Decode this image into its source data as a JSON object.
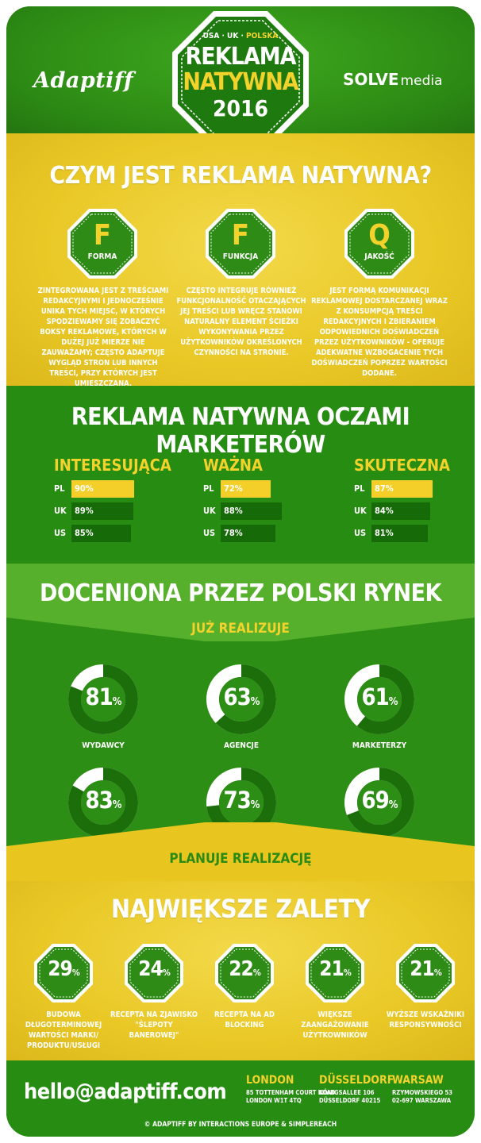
{
  "header": {
    "logo_left": "Adaptiff",
    "logo_right_1": "SOLVE",
    "logo_right_2": "media",
    "badge_countries_1": "USA · UK · ",
    "badge_countries_2": "POLSKA",
    "badge_title_1": "REKLAMA",
    "badge_title_2": "NATYWNA",
    "badge_year": "2016"
  },
  "what_is": {
    "title": "CZYM JEST REKLAMA NATYWNA?",
    "items": [
      {
        "letter": "F",
        "label": "FORMA",
        "text": "ZINTEGROWANA JEST Z TREŚCIAMI REDAKCYJNYMI I JEDNOCZEŚNIE UNIKA TYCH MIEJSC, W KTÓRYCH SPODZIEWAMY SIĘ ZOBACZYĆ BOKSY REKLAMOWE, KTÓRYCH W DUŻEJ JUŻ MIERZE NIE ZAUWAŻAMY; CZĘSTO ADAPTUJE WYGLĄD STRON LUB INNYCH TREŚCI, PRZY KTÓRYCH JEST UMIESZCZANA."
      },
      {
        "letter": "F",
        "label": "FUNKCJA",
        "text": "CZĘSTO INTEGRUJE RÓWNIEŻ FUNKCJONALNOŚĆ OTACZAJĄCYCH JEJ TREŚCI LUB WRĘCZ STANOWI NATURALNY ELEMENT ŚCIEŻKI WYKONYWANIA PRZEZ UŻYTKOWNIKÓW OKREŚLONYCH CZYNNOŚCI NA STRONIE."
      },
      {
        "letter": "Q",
        "label": "JAKOŚĆ",
        "text": "JEST FORMĄ KOMUNIKACJI REKLAMOWEJ DOSTARCZANEJ WRAZ Z KONSUMPCJĄ TREŚCI REDAKCYJNYCH I ZBIERANIEM ODPOWIEDNICH DOŚWIADCZEŃ PRZEZ UŻYTKOWNIKÓW - OFERUJE ADEKWATNE WZBOGACENIE TYCH DOŚWIADCZEŃ POPRZEZ WARTOŚCI DODANE."
      }
    ]
  },
  "marketers": {
    "title": "REKLAMA NATYWNA OCZAMI MARKETERÓW",
    "groups": [
      {
        "name": "INTERESUJĄCA",
        "rows": [
          {
            "country": "PL",
            "label": "90%",
            "value": 90
          },
          {
            "country": "UK",
            "label": "89%",
            "value": 89
          },
          {
            "country": "US",
            "label": "85%",
            "value": 85
          }
        ]
      },
      {
        "name": "WAŻNA",
        "rows": [
          {
            "country": "PL",
            "label": "72%",
            "value": 72
          },
          {
            "country": "UK",
            "label": "88%",
            "value": 88
          },
          {
            "country": "US",
            "label": "78%",
            "value": 78
          }
        ]
      },
      {
        "name": "SKUTECZNA",
        "rows": [
          {
            "country": "PL",
            "label": "87%",
            "value": 87
          },
          {
            "country": "UK",
            "label": "84%",
            "value": 84
          },
          {
            "country": "US",
            "label": "81%",
            "value": 81
          }
        ]
      }
    ]
  },
  "polish_market": {
    "title": "DOCENIONA PRZEZ POLSKI RYNEK",
    "top_label": "JUŻ REALIZUJE",
    "bottom_label": "PLANUJE REALIZACJĘ",
    "percent_sign": "%",
    "groups": [
      {
        "name": "WYDAWCY",
        "now": 81,
        "planned": 83
      },
      {
        "name": "AGENCJE",
        "now": 63,
        "planned": 73
      },
      {
        "name": "MARKETERZY",
        "now": 61,
        "planned": 69
      }
    ]
  },
  "benefits": {
    "title": "NAJWIĘKSZE ZALETY",
    "percent_sign": "%",
    "items": [
      {
        "value": 29,
        "text": "BUDOWA DŁUGOTERMINOWEJ WARTOŚCI MARKI/ PRODUKTU/USŁUGI"
      },
      {
        "value": 24,
        "text": "RECEPTA NA ZJAWISKO \"ŚLEPOTY BANEROWEJ\""
      },
      {
        "value": 22,
        "text": "RECEPTA NA AD BLOCKING"
      },
      {
        "value": 21,
        "text": "WIĘKSZE ZAANGAŻOWANIE UŻYTKOWNIKÓW"
      },
      {
        "value": 21,
        "text": "WYŻSZE WSKAŹNIKI RESPONSYWNOŚCI"
      }
    ]
  },
  "footer": {
    "email": "hello@adaptiff.com",
    "offices": [
      {
        "city": "LONDON",
        "line1": "85 TOTTENHAM COURT ROAD",
        "line2": "LONDON W1T 4TQ"
      },
      {
        "city": "DÜSSELDORF",
        "line1": "KÖNIGSALLEE 106",
        "line2": "DÜSSELDORF 40215"
      },
      {
        "city": "WARSAW",
        "line1": "RZYMOWSKIEGO 53",
        "line2": "02-697 WARSZAWA"
      }
    ],
    "copyright": "© ADAPTIFF BY INTERACTIONS EUROPE & SIMPLEREACH"
  },
  "colors": {
    "green": "#2e8b16",
    "dark_green": "#1e6f0c",
    "light_green": "#56b02c",
    "yellow": "#f4d22c",
    "white": "#ffffff"
  }
}
